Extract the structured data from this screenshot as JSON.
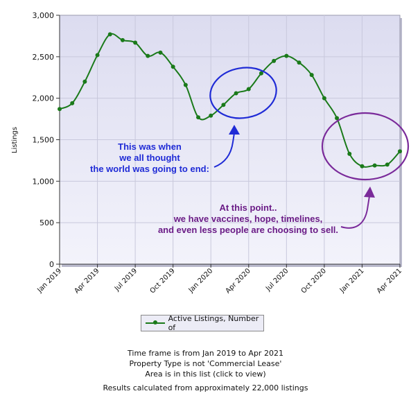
{
  "chart_data": {
    "type": "line",
    "ylabel": "Listings",
    "ylim": [
      0,
      3000
    ],
    "y_ticks": [
      "0",
      "500",
      "1,000",
      "1,500",
      "2,000",
      "2,500",
      "3,000"
    ],
    "x_tick_labels": [
      "Jan 2019",
      "Apr 2019",
      "Jul 2019",
      "Oct 2019",
      "Jan 2020",
      "Apr 2020",
      "Jul 2020",
      "Oct 2020",
      "Jan 2021",
      "Apr 2021"
    ],
    "x": [
      "Jan 2019",
      "Feb 2019",
      "Mar 2019",
      "Apr 2019",
      "May 2019",
      "Jun 2019",
      "Jul 2019",
      "Aug 2019",
      "Sep 2019",
      "Oct 2019",
      "Nov 2019",
      "Dec 2019",
      "Jan 2020",
      "Feb 2020",
      "Mar 2020",
      "Apr 2020",
      "May 2020",
      "Jun 2020",
      "Jul 2020",
      "Aug 2020",
      "Sep 2020",
      "Oct 2020",
      "Nov 2020",
      "Dec 2020",
      "Jan 2021",
      "Feb 2021",
      "Mar 2021",
      "Apr 2021"
    ],
    "series": [
      {
        "name": "Active Listings, Number of",
        "color": "#1a7a1a",
        "values": [
          1870,
          1940,
          2200,
          2520,
          2770,
          2700,
          2670,
          2510,
          2550,
          2380,
          2160,
          1770,
          1790,
          1920,
          2060,
          2110,
          2300,
          2450,
          2510,
          2430,
          2280,
          2000,
          1760,
          1330,
          1180,
          1190,
          1200,
          1360
        ]
      }
    ],
    "annotations": [
      {
        "text": "This was when\nwe all thought\nthe world was going to end:",
        "color": "#1f2bd6"
      },
      {
        "text": "At this point..\nwe have vaccines, hope, timelines,\nand even less people are choosing to sell.",
        "color": "#6a1b86"
      }
    ],
    "legend_position": "bottom"
  },
  "footer": {
    "line1": "Time frame is from Jan 2019 to Apr 2021",
    "line2": "Property Type is not 'Commercial Lease'",
    "line3": "Area is in this list (click to view)",
    "line4": "Results calculated from approximately 22,000 listings"
  }
}
